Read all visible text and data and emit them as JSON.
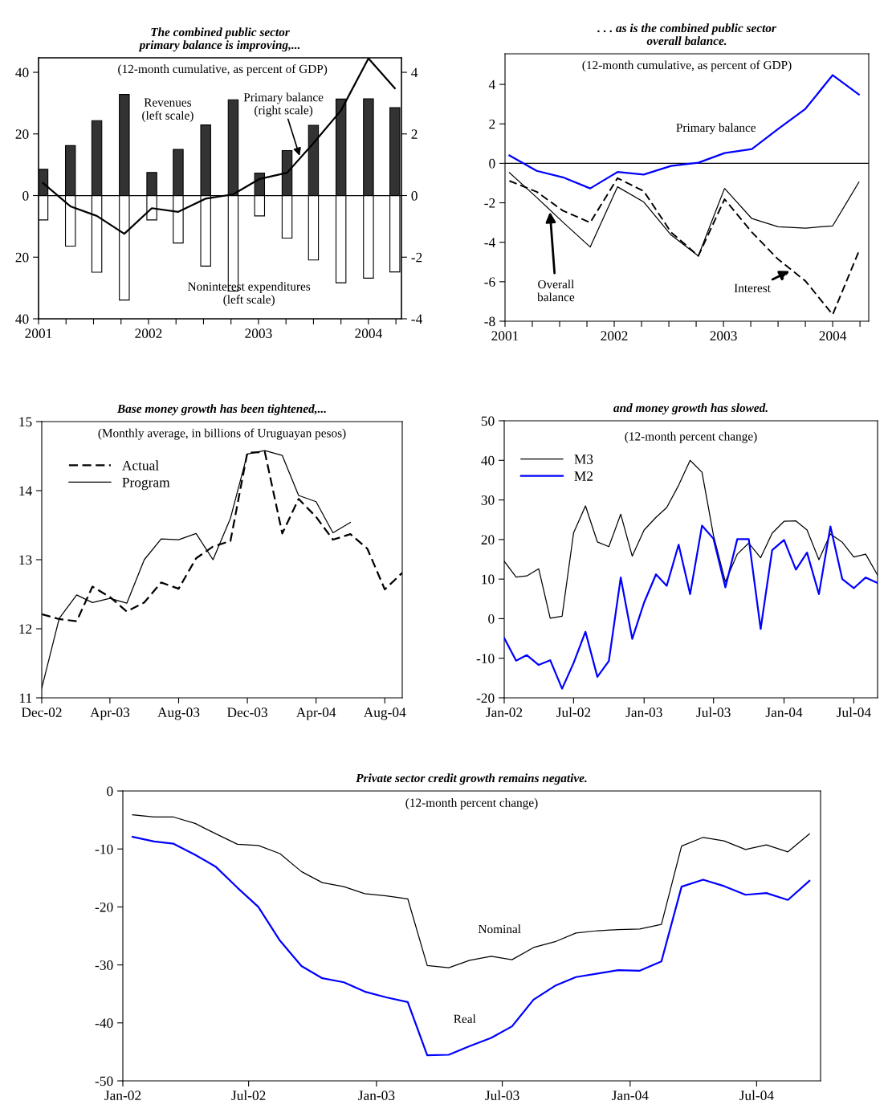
{
  "chart_data": [
    {
      "type": "bar",
      "title": "The combined public sector\nprimary balance is improving,...",
      "subtitle": "(12-month cumulative, as percent of GDP)",
      "x": [
        2001.04,
        2001.29,
        2001.53,
        2001.78,
        2002.03,
        2002.27,
        2002.52,
        2002.77,
        2003.01,
        2003.26,
        2003.5,
        2003.75,
        2004.0,
        2004.24
      ],
      "series": [
        {
          "color": "#333333",
          "values": [
            8.5,
            16.2,
            24.3,
            32.8,
            7.5,
            15.0,
            22.9,
            31.1,
            7.3,
            14.6,
            22.8,
            31.3,
            31.4,
            28.5
          ]
        },
        {
          "color": "#ffffff",
          "values": [
            -7.9,
            -16.4,
            -24.9,
            -33.9,
            -7.9,
            -15.4,
            -22.9,
            -31.0,
            -6.6,
            -13.8,
            -20.9,
            -28.3,
            -26.8,
            -24.8
          ]
        },
        {
          "type": "line",
          "axis": "y2",
          "color": "#000000",
          "values": [
            0.41,
            -0.35,
            -0.66,
            -1.24,
            -0.41,
            -0.53,
            -0.1,
            0.04,
            0.54,
            0.74,
            1.7,
            2.76,
            4.45,
            3.48
          ]
        }
      ],
      "xlim": [
        2001,
        2004.3
      ],
      "xticks": [
        2001,
        {
          "value": 2001.25,
          "label": null
        },
        {
          "value": 2001.5,
          "label": null
        },
        {
          "value": 2001.75,
          "label": null
        },
        2002,
        {
          "value": 2002.25,
          "label": null
        },
        {
          "value": 2002.5,
          "label": null
        },
        {
          "value": 2002.75,
          "label": null
        },
        2003,
        {
          "value": 2003.25,
          "label": null
        },
        {
          "value": 2003.5,
          "label": null
        },
        {
          "value": 2003.75,
          "label": null
        },
        2004,
        {
          "value": 2004.25,
          "label": null
        }
      ],
      "ylim": [
        -40,
        44.7
      ],
      "yticks": [
        {
          "value": -40,
          "label": "40"
        },
        {
          "value": -20,
          "label": "20"
        },
        0,
        20,
        40
      ],
      "y2lim": [
        -4,
        4.47
      ],
      "y2ticks": [
        -4,
        -2,
        0,
        2,
        4
      ],
      "ref_lines": [
        {
          "axis": "y",
          "value": 0,
          "color": "#000000"
        }
      ],
      "stacked": true,
      "annotations": [
        "Revenues\n(left scale)",
        {
          "text": "Primary balance\n(right scale)",
          "x": 2003.38,
          "y": 12.2
        },
        "Noninterest expenditures\n(left scale)"
      ]
    },
    {
      "type": "line",
      "title": ". . . as is the combined public sector\noverall balance.",
      "subtitle": "(12-month cumulative, as percent of GDP)",
      "x": [
        2001.04,
        2001.29,
        2001.53,
        2001.78,
        2002.03,
        2002.27,
        2002.52,
        2002.77,
        2003.01,
        2003.26,
        2003.5,
        2003.75,
        2004.0,
        2004.24
      ],
      "series": [
        {
          "name": "Primary balance",
          "color": "#0000ff",
          "values": [
            0.4,
            -0.38,
            -0.71,
            -1.27,
            -0.44,
            -0.57,
            -0.13,
            0.03,
            0.52,
            0.72,
            1.74,
            2.76,
            4.47,
            3.49
          ]
        },
        {
          "name": "Overall\nbalance",
          "color": "#000000",
          "values": [
            -0.47,
            -1.73,
            -2.98,
            -4.24,
            -1.19,
            -1.96,
            -3.63,
            -4.69,
            -1.27,
            -2.8,
            -3.21,
            -3.28,
            -3.17,
            -0.95
          ]
        },
        {
          "name": "Interest",
          "color": "#000000",
          "line_style": "dashed",
          "values": [
            -0.89,
            -1.44,
            -2.4,
            -3.0,
            -0.75,
            -1.41,
            -3.49,
            -4.69,
            -1.82,
            -3.49,
            -4.86,
            -5.96,
            -7.66,
            -4.45
          ]
        }
      ],
      "xlim": [
        2001,
        2004.33
      ],
      "xticks": [
        2001,
        {
          "value": 2001.25,
          "label": null
        },
        {
          "value": 2001.5,
          "label": null
        },
        {
          "value": 2001.75,
          "label": null
        },
        2002,
        {
          "value": 2002.25,
          "label": null
        },
        {
          "value": 2002.5,
          "label": null
        },
        {
          "value": 2002.75,
          "label": null
        },
        2003,
        {
          "value": 2003.25,
          "label": null
        },
        {
          "value": 2003.5,
          "label": null
        },
        {
          "value": 2003.75,
          "label": null
        },
        2004,
        {
          "value": 2004.25,
          "label": null
        }
      ],
      "ylim": [
        -8,
        5.55
      ],
      "yticks": [
        -8,
        -6,
        -4,
        -2,
        0,
        2,
        4
      ],
      "ref_lines": [
        {
          "axis": "y",
          "value": 0,
          "color": "#000000"
        }
      ]
    },
    {
      "type": "line",
      "title": "Base money growth has been tightened,...",
      "subtitle": "(Monthly average, in billions of Uruguayan pesos)",
      "x": [
        "2002-12",
        "2003-01",
        "2003-02",
        "2003-03",
        "2003-04",
        "2003-05",
        "2003-06",
        "2003-07",
        "2003-08",
        "2003-09",
        "2003-10",
        "2003-11",
        "2003-12",
        "2004-01",
        "2004-02",
        "2004-03",
        "2004-04",
        "2004-05",
        "2004-06",
        "2004-07",
        "2004-08",
        "2004-09"
      ],
      "series": [
        {
          "name": "Actual",
          "color": "#000000",
          "line_style": "dashed",
          "values": [
            12.21,
            12.14,
            12.11,
            12.61,
            12.46,
            12.25,
            12.38,
            12.67,
            12.58,
            13.02,
            13.19,
            13.27,
            14.55,
            14.56,
            13.38,
            13.88,
            13.62,
            13.29,
            13.37,
            13.16,
            12.57,
            12.81
          ]
        },
        {
          "name": "Program",
          "color": "#000000",
          "values": [
            11.14,
            12.15,
            12.49,
            12.38,
            12.44,
            12.37,
            13.0,
            13.3,
            13.29,
            13.38,
            13.0,
            13.6,
            14.53,
            14.58,
            14.51,
            13.93,
            13.84,
            13.39,
            13.54,
            null,
            null,
            null
          ]
        }
      ],
      "xlim": [
        "2002-12",
        "2004-09"
      ],
      "xticks": [
        {
          "value": "2002-12",
          "label": "Dec-02"
        },
        {
          "value": "2003-04",
          "label": "Apr-03"
        },
        {
          "value": "2003-08",
          "label": "Aug-03"
        },
        {
          "value": "2003-12",
          "label": "Dec-03"
        },
        {
          "value": "2004-04",
          "label": "Apr-04"
        },
        {
          "value": "2004-08",
          "label": "Aug-04"
        }
      ],
      "ylim": [
        11,
        15
      ],
      "yticks": [
        11,
        12,
        13,
        14,
        15
      ],
      "legend": "top left"
    },
    {
      "type": "line",
      "title": "and money growth has slowed.",
      "subtitle": "(12-month percent change)",
      "x": [
        "2002-01",
        "2002-02",
        "2002-03",
        "2002-04",
        "2002-05",
        "2002-06",
        "2002-07",
        "2002-08",
        "2002-09",
        "2002-10",
        "2002-11",
        "2002-12",
        "2003-01",
        "2003-02",
        "2003-03",
        "2003-04",
        "2003-05",
        "2003-06",
        "2003-07",
        "2003-08",
        "2003-09",
        "2003-10",
        "2003-11",
        "2003-12",
        "2004-01",
        "2004-02",
        "2004-03",
        "2004-04",
        "2004-05",
        "2004-06",
        "2004-07",
        "2004-08",
        "2004-09"
      ],
      "series": [
        {
          "name": "M3",
          "color": "#000000",
          "values": [
            14.5,
            10.5,
            10.8,
            12.6,
            0.1,
            0.6,
            21.7,
            28.5,
            19.4,
            18.2,
            26.4,
            15.8,
            22.4,
            25.6,
            28.1,
            33.7,
            40.0,
            37.0,
            21.0,
            9.3,
            16.3,
            19.1,
            15.4,
            21.6,
            24.6,
            24.7,
            22.4,
            14.9,
            21.4,
            19.3,
            15.6,
            16.3,
            11.0
          ]
        },
        {
          "name": "M2",
          "color": "#0000ff",
          "values": [
            -4.9,
            -10.6,
            -9.2,
            -11.7,
            -10.5,
            -17.7,
            -11.2,
            -3.3,
            -14.7,
            -10.7,
            10.4,
            -5.1,
            4.1,
            11.2,
            8.3,
            18.7,
            6.2,
            23.5,
            20.2,
            7.9,
            20.1,
            20.1,
            -2.6,
            17.3,
            19.9,
            12.4,
            16.7,
            6.2,
            23.3,
            10.0,
            7.7,
            10.4,
            9.0
          ]
        }
      ],
      "xlim": [
        "2002-01",
        "2004-09"
      ],
      "xticks": [
        {
          "value": "2002-01",
          "label": "Jan-02"
        },
        {
          "value": "2002-07",
          "label": "Jul-02"
        },
        {
          "value": "2003-01",
          "label": "Jan-03"
        },
        {
          "value": "2003-07",
          "label": "Jul-03"
        },
        {
          "value": "2004-01",
          "label": "Jan-04"
        },
        {
          "value": "2004-07",
          "label": "Jul-04"
        }
      ],
      "ylim": [
        -20,
        50
      ],
      "yticks": [
        -20,
        -10,
        0,
        10,
        20,
        30,
        40,
        50
      ],
      "legend": "top left"
    },
    {
      "type": "line",
      "title": "Private sector credit growth remains negative.",
      "subtitle": "(12-month percent change)",
      "x": [
        "2002-01-15",
        "2002-02-15",
        "2002-03-15",
        "2002-04-15",
        "2002-05-15",
        "2002-06-15",
        "2002-07-15",
        "2002-08-15",
        "2002-09-15",
        "2002-10-15",
        "2002-11-15",
        "2002-12-15",
        "2003-01-15",
        "2003-02-15",
        "2003-03-15",
        "2003-04-15",
        "2003-05-15",
        "2003-06-15",
        "2003-07-15",
        "2003-08-15",
        "2003-09-15",
        "2003-10-15",
        "2003-11-15",
        "2003-12-15",
        "2004-01-15",
        "2004-02-15",
        "2004-03-15",
        "2004-04-15",
        "2004-05-15",
        "2004-06-15",
        "2004-07-15",
        "2004-08-15",
        "2004-09-15"
      ],
      "series": [
        {
          "name": "Nominal",
          "color": "#000000",
          "values": [
            -4.1,
            -4.5,
            -4.5,
            -5.6,
            -7.4,
            -9.2,
            -9.4,
            -10.8,
            -13.9,
            -15.8,
            -16.5,
            -17.7,
            -18.1,
            -18.6,
            -30.1,
            -30.5,
            -29.2,
            -28.5,
            -29.1,
            -27.0,
            -26.0,
            -24.5,
            -24.1,
            -23.9,
            -23.8,
            -23.0,
            -9.5,
            -8.0,
            -8.6,
            -10.1,
            -9.3,
            -10.5,
            -7.4
          ]
        },
        {
          "name": "Real",
          "color": "#0000ff",
          "values": [
            -7.9,
            -8.7,
            -9.1,
            -11.0,
            -13.1,
            -16.7,
            -20.0,
            -25.8,
            -30.2,
            -32.3,
            -33.0,
            -34.6,
            -35.6,
            -36.4,
            -45.6,
            -45.5,
            -44.0,
            -42.6,
            -40.6,
            -36.0,
            -33.6,
            -32.1,
            -31.5,
            -30.9,
            -31.0,
            -29.4,
            -16.5,
            -15.3,
            -16.4,
            -17.9,
            -17.6,
            -18.8,
            -15.5
          ]
        }
      ],
      "xlim": [
        "2002-01-01",
        "2004-10-01"
      ],
      "xticks": [
        {
          "value": "2002-01",
          "label": "Jan-02"
        },
        {
          "value": "2002-07",
          "label": "Jul-02"
        },
        {
          "value": "2003-01",
          "label": "Jan-03"
        },
        {
          "value": "2003-07",
          "label": "Jul-03"
        },
        {
          "value": "2004-01",
          "label": "Jan-04"
        },
        {
          "value": "2004-07",
          "label": "Jul-04"
        }
      ],
      "ylim": [
        -50,
        0
      ],
      "yticks": [
        -50,
        -40,
        -30,
        -20,
        -10,
        0
      ]
    }
  ]
}
